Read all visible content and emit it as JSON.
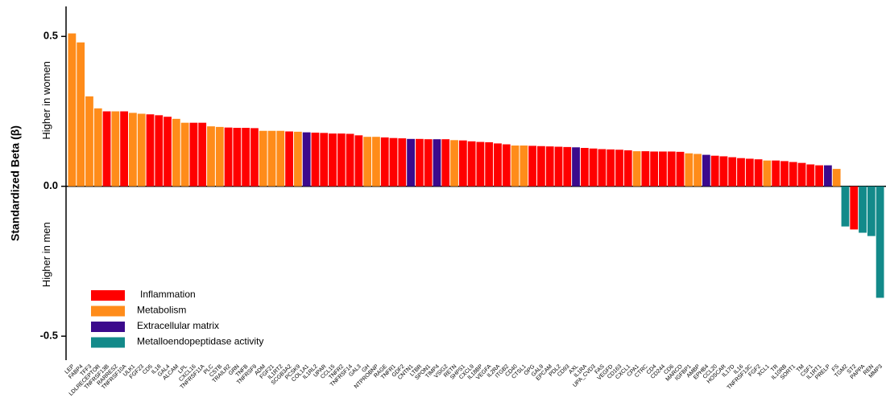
{
  "chart_data": {
    "type": "bar",
    "y_label": "Standardized Beta (β)",
    "annotations": [
      "Higher in women",
      "Higher in men"
    ],
    "categories": [
      "LEP",
      "FABP4",
      "TFF3",
      "LDLRECEPTOR",
      "TNFRSF13B",
      "RARRES2",
      "TNFRSF10A",
      "ULK1",
      "FGF23",
      "CD5",
      "IL18",
      "GAL4",
      "ALCAM",
      "LPL",
      "CXCL16",
      "TNFRSF11A",
      "PLC",
      "CSTB",
      "TRAILR2",
      "GRN",
      "TNFB",
      "TNFRSF9",
      "ADM",
      "FGF21",
      "IL1RT2",
      "SCGB3A2",
      "PCSK9",
      "COL1A1",
      "IL1RL2",
      "UPAR",
      "CCL15",
      "TNFR2",
      "TNFRSF14",
      "GAL3",
      "GH",
      "NTPROBNP",
      "RAGE",
      "TNFR1",
      "GDF2",
      "CNTN1",
      "LTBR",
      "SPON1",
      "TIMP4",
      "VSIG2",
      "RETN",
      "SHPS1",
      "CXCL9",
      "IL18BP",
      "VEGFA",
      "IL2RA",
      "ITGB2",
      "CD40",
      "CTSL1",
      "OPG",
      "GAL9",
      "EPCAM",
      "PDL2",
      "CD93",
      "AXL",
      "IL1RA",
      "UPA_CVD3",
      "FAS",
      "VEGFD",
      "CD163",
      "CXCL1",
      "CPA1",
      "CTRC",
      "CD4",
      "CD244",
      "CD6",
      "MARCO",
      "IGFBP1",
      "AMBP",
      "EPHB4",
      "CCL20",
      "HOSCAR",
      "IL17D",
      "IL16",
      "TNFRSF13C",
      "FGF2",
      "XCL1",
      "TR",
      "IL10RB",
      "SORT1",
      "TM",
      "CSF1",
      "IL1RT1",
      "PRELP",
      "FS",
      "TGM2",
      "ST2",
      "PAPPA",
      "REN",
      "MMP3"
    ],
    "values": [
      0.51,
      0.48,
      0.3,
      0.26,
      0.25,
      0.25,
      0.25,
      0.245,
      0.242,
      0.24,
      0.237,
      0.232,
      0.225,
      0.212,
      0.212,
      0.212,
      0.2,
      0.198,
      0.196,
      0.195,
      0.195,
      0.194,
      0.185,
      0.185,
      0.185,
      0.183,
      0.182,
      0.18,
      0.179,
      0.178,
      0.176,
      0.176,
      0.175,
      0.17,
      0.165,
      0.165,
      0.163,
      0.161,
      0.16,
      0.158,
      0.158,
      0.157,
      0.157,
      0.157,
      0.154,
      0.153,
      0.15,
      0.148,
      0.147,
      0.143,
      0.14,
      0.136,
      0.136,
      0.135,
      0.134,
      0.133,
      0.132,
      0.131,
      0.13,
      0.128,
      0.126,
      0.124,
      0.123,
      0.122,
      0.12,
      0.117,
      0.117,
      0.116,
      0.116,
      0.116,
      0.115,
      0.11,
      0.108,
      0.105,
      0.102,
      0.1,
      0.097,
      0.094,
      0.092,
      0.09,
      0.086,
      0.086,
      0.084,
      0.081,
      0.078,
      0.073,
      0.07,
      0.07,
      0.058,
      -0.134,
      -0.144,
      -0.155,
      -0.166,
      -0.372
    ],
    "colors": [
      "#ff8c1a",
      "#ff8c1a",
      "#ff8c1a",
      "#ff8c1a",
      "#ff0000",
      "#ff8c1a",
      "#ff0000",
      "#ff8c1a",
      "#ff8c1a",
      "#ff0000",
      "#ff0000",
      "#ff0000",
      "#ff8c1a",
      "#ff8c1a",
      "#ff0000",
      "#ff0000",
      "#ff8c1a",
      "#ff8c1a",
      "#ff0000",
      "#ff0000",
      "#ff0000",
      "#ff0000",
      "#ff8c1a",
      "#ff8c1a",
      "#ff8c1a",
      "#ff0000",
      "#ff8c1a",
      "#3b0a8c",
      "#ff0000",
      "#ff0000",
      "#ff0000",
      "#ff0000",
      "#ff0000",
      "#ff0000",
      "#ff8c1a",
      "#ff8c1a",
      "#ff0000",
      "#ff0000",
      "#ff0000",
      "#3b0a8c",
      "#ff0000",
      "#ff0000",
      "#3b0a8c",
      "#ff0000",
      "#ff8c1a",
      "#ff0000",
      "#ff0000",
      "#ff0000",
      "#ff0000",
      "#ff0000",
      "#ff0000",
      "#ff8c1a",
      "#ff8c1a",
      "#ff0000",
      "#ff0000",
      "#ff0000",
      "#ff0000",
      "#ff0000",
      "#3b0a8c",
      "#ff0000",
      "#ff0000",
      "#ff0000",
      "#ff0000",
      "#ff0000",
      "#ff0000",
      "#ff8c1a",
      "#ff0000",
      "#ff0000",
      "#ff0000",
      "#ff0000",
      "#ff0000",
      "#ff8c1a",
      "#ff8c1a",
      "#3b0a8c",
      "#ff0000",
      "#ff0000",
      "#ff0000",
      "#ff0000",
      "#ff0000",
      "#ff0000",
      "#ff8c1a",
      "#ff0000",
      "#ff0000",
      "#ff0000",
      "#ff0000",
      "#ff0000",
      "#ff0000",
      "#3b0a8c",
      "#ff8c1a",
      "#138a8a",
      "#ff0000",
      "#138a8a",
      "#138a8a",
      "#138a8a"
    ],
    "legend": [
      {
        "name": "Inflammation",
        "color": "#ff0000"
      },
      {
        "name": "Metabolism",
        "color": "#ff8c1a"
      },
      {
        "name": "Extracellular matrix",
        "color": "#3b0a8c"
      },
      {
        "name": "Metalloendopeptidase activity",
        "color": "#138a8a"
      }
    ],
    "ylim": [
      -0.58,
      0.6
    ],
    "yticks": [
      -0.5,
      {
        "value": 0,
        "label": "0.0"
      },
      0.5
    ]
  }
}
